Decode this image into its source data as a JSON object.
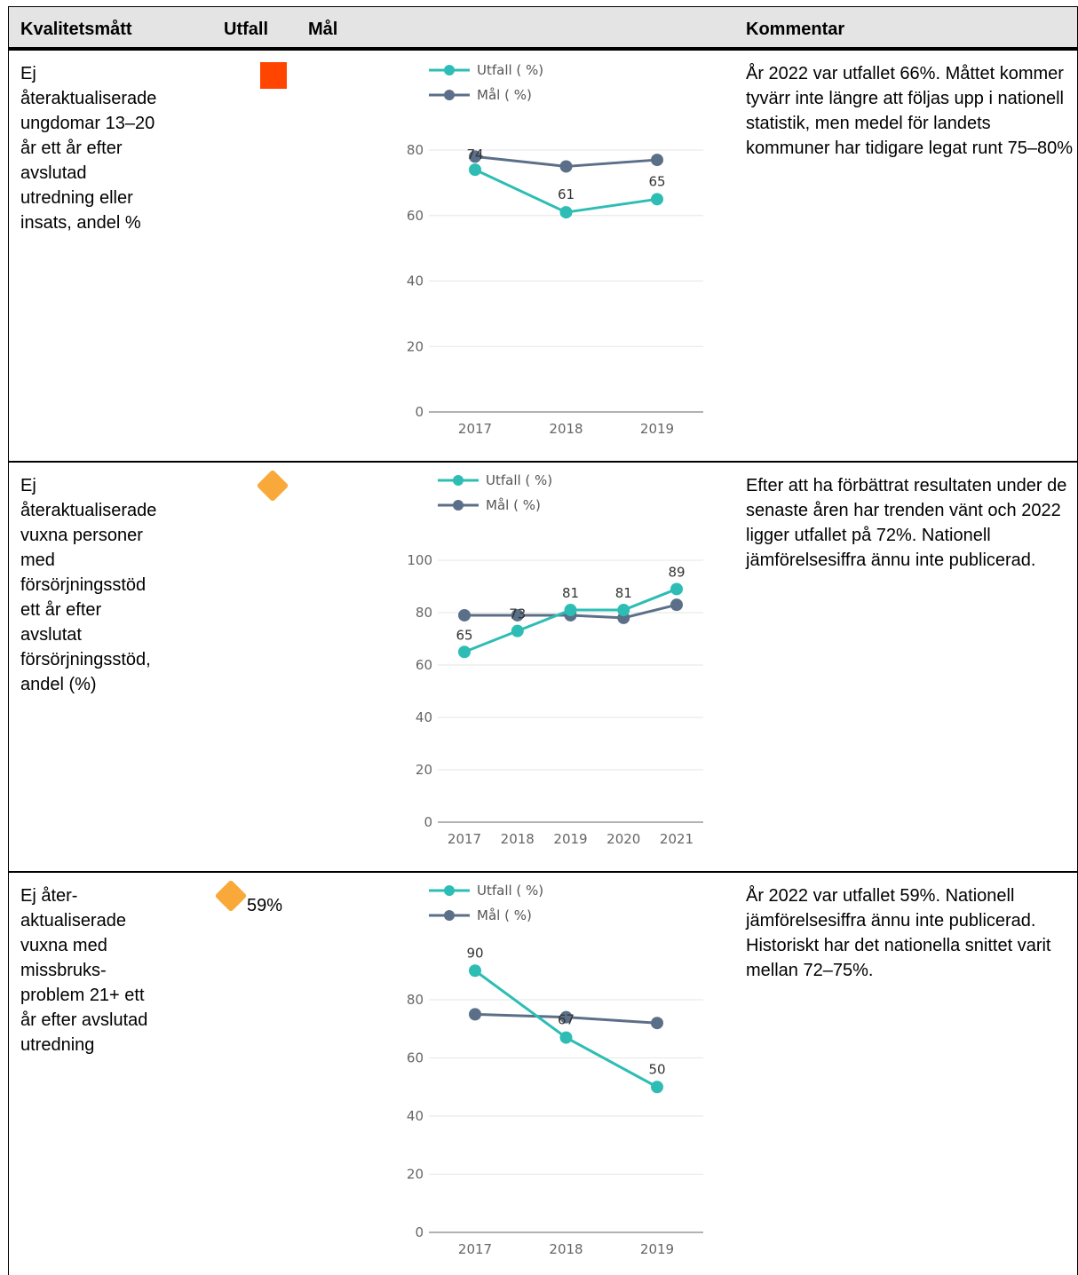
{
  "header": {
    "col_measure": "Kvalitetsmått",
    "col_outcome": "Utfall",
    "col_target": "Mål",
    "col_comment": "Kommentar"
  },
  "colors": {
    "utfall": "#2dbdb4",
    "mal": "#5b6f88",
    "status_red": "#ff4500",
    "status_orange": "#f8a93a"
  },
  "rows": [
    {
      "measure": "Ej\nåteraktualiserade\nungdomar 13–20\når ett år efter\navslutad\nutredning eller\ninsats, andel %",
      "status": "red",
      "outcome_text": "",
      "comment": "År 2022 var utfallet 66%. Måttet kommer tyvärr inte längre att följas upp i nationell statistik, men medel för landets kommuner har tidigare legat runt 75–80%"
    },
    {
      "measure": "Ej\nåteraktualiserade\nvuxna personer\nmed\nförsörjningsstöd\nett år efter\navslutat\nförsörjningsstöd,\nandel (%)",
      "status": "orange",
      "outcome_text": "",
      "comment": "Efter att ha förbättrat resultaten under de senaste åren har trenden vänt och 2022 ligger utfallet på 72%. Nationell jämförelsesiffra ännu inte publicerad."
    },
    {
      "measure": "Ej åter-\naktualiserade\nvuxna med\nmissbruks-\nproblem 21+ ett\når efter avslutad\nutredning",
      "status": "orange",
      "outcome_text": "59%",
      "comment": "År 2022 var utfallet 59%. Nationell jämförelsesiffra ännu inte publicerad. Historiskt har det nationella snittet varit mellan 72–75%."
    }
  ],
  "chart_data": [
    {
      "type": "line",
      "x": [
        "2017",
        "2018",
        "2019"
      ],
      "series": [
        {
          "name": "Utfall ( %)",
          "values": [
            74,
            61,
            65
          ],
          "labels": [
            "74",
            "61",
            "65"
          ]
        },
        {
          "name": "Mål ( %)",
          "values": [
            78,
            75,
            77
          ]
        }
      ],
      "yticks": [
        "0",
        "20",
        "40",
        "60",
        "80"
      ],
      "ylim": [
        0,
        85
      ],
      "grid": true,
      "legend": "top-left"
    },
    {
      "type": "line",
      "x": [
        "2017",
        "2018",
        "2019",
        "2020",
        "2021"
      ],
      "series": [
        {
          "name": "Utfall ( %)",
          "values": [
            65,
            73,
            81,
            81,
            89
          ],
          "labels": [
            "65",
            "73",
            "81",
            "81",
            "89"
          ]
        },
        {
          "name": "Mål ( %)",
          "values": [
            79,
            79,
            79,
            78,
            83
          ]
        }
      ],
      "yticks": [
        "0",
        "20",
        "40",
        "60",
        "80",
        "100"
      ],
      "ylim": [
        0,
        100
      ],
      "grid": true,
      "legend": "top-left"
    },
    {
      "type": "line",
      "x": [
        "2017",
        "2018",
        "2019"
      ],
      "series": [
        {
          "name": "Utfall ( %)",
          "values": [
            90,
            67,
            50
          ],
          "labels": [
            "90",
            "67",
            "50"
          ]
        },
        {
          "name": "Mål ( %)",
          "values": [
            75,
            74,
            72
          ]
        }
      ],
      "yticks": [
        "0",
        "20",
        "40",
        "60",
        "80"
      ],
      "ylim": [
        0,
        95
      ],
      "grid": true,
      "legend": "top-left"
    }
  ]
}
